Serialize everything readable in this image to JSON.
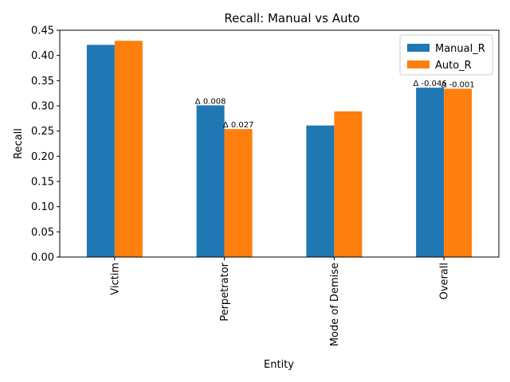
{
  "chart_data": {
    "type": "bar",
    "title": "Recall: Manual vs Auto",
    "xlabel": "Entity",
    "ylabel": "Recall",
    "categories": [
      "Victim",
      "Perpetrator",
      "Mode of Demise",
      "Overall"
    ],
    "series": [
      {
        "name": "Manual_R",
        "values": [
          0.421,
          0.301,
          0.261,
          0.336
        ],
        "color": "#1f77b4"
      },
      {
        "name": "Auto_R",
        "values": [
          0.429,
          0.254,
          0.289,
          0.334
        ],
        "color": "#ff7f0e"
      }
    ],
    "ylim": [
      0,
      0.45
    ],
    "yticks": [
      "0.00",
      "0.05",
      "0.10",
      "0.15",
      "0.20",
      "0.25",
      "0.30",
      "0.35",
      "0.40",
      "0.45"
    ],
    "legend_position": "top-right",
    "grid": false,
    "annotations": [
      {
        "text": "Δ 0.008",
        "category": "Perpetrator",
        "series": "Manual_R"
      },
      {
        "text": "Δ 0.027",
        "category": "Perpetrator",
        "series": "Auto_R"
      },
      {
        "text": "Δ -0.046",
        "category": "Overall",
        "series": "Manual_R"
      },
      {
        "text": "Δ -0.001",
        "category": "Overall",
        "series": "Auto_R"
      }
    ]
  }
}
